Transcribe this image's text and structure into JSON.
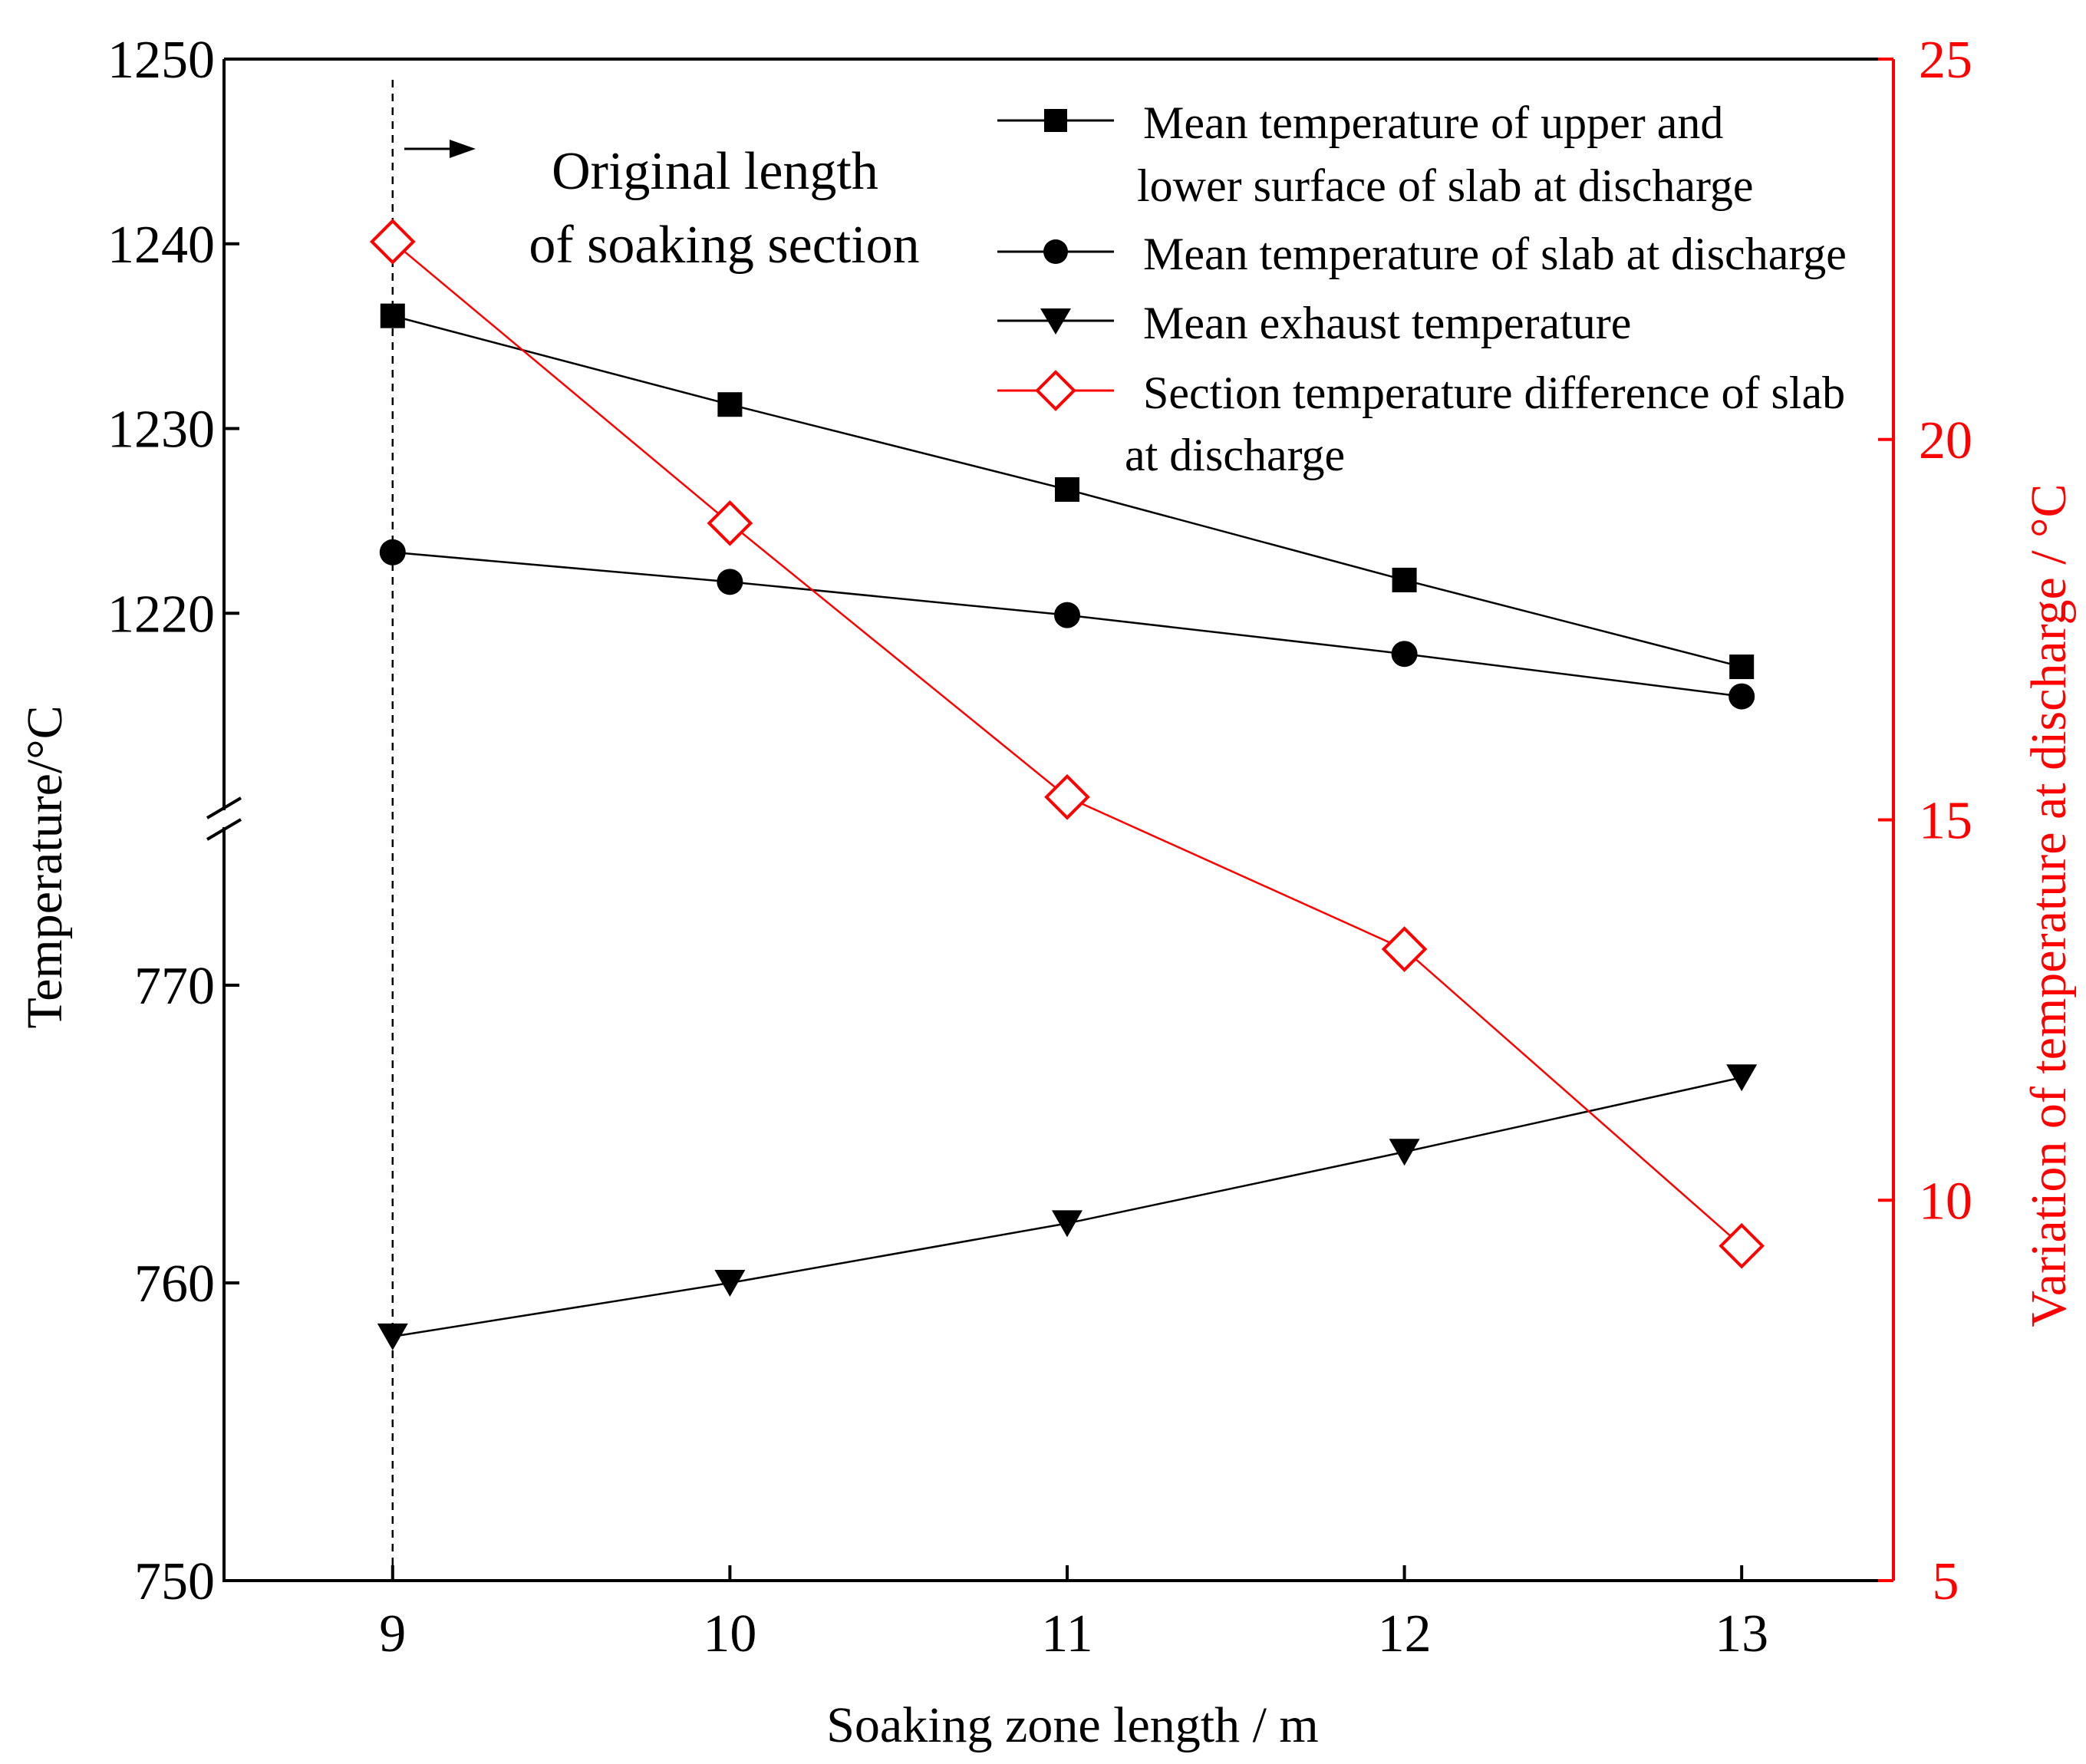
{
  "chart_data": {
    "type": "line",
    "xlabel": "Soaking zone length / m",
    "ylabel_left": "Temperature/°C",
    "ylabel_right": "Variation of temperature at discharge / °C",
    "x": [
      9,
      10,
      11,
      12,
      13
    ],
    "x_ticks": [
      "9",
      "10",
      "11",
      "12",
      "13"
    ],
    "xlim": [
      8.5,
      13.45
    ],
    "y_left_upper": {
      "ylim": [
        1210,
        1250
      ],
      "ticks": [
        "1250",
        "1240",
        "1230",
        "1220"
      ]
    },
    "y_left_lower": {
      "ylim": [
        750,
        775
      ],
      "ticks": [
        "770",
        "760",
        "750"
      ]
    },
    "y_right": {
      "ylim": [
        5,
        25
      ],
      "ticks": [
        "25",
        "20",
        "15",
        "10",
        "5"
      ]
    },
    "series": [
      {
        "name": "Mean temperature of  upper and lower surface of slab at discharge",
        "legend_lines": [
          "Mean temperature of  upper and",
          "lower surface of slab at discharge"
        ],
        "axis": "left_upper",
        "marker": "square",
        "color": "#000000",
        "values": [
          1236.1,
          1231.3,
          1226.7,
          1221.8,
          1217.1
        ]
      },
      {
        "name": "Mean temperature of slab at discharge",
        "legend_lines": [
          "Mean temperature of slab at discharge"
        ],
        "axis": "left_upper",
        "marker": "circle",
        "color": "#000000",
        "values": [
          1223.3,
          1221.7,
          1219.9,
          1217.8,
          1215.5
        ]
      },
      {
        "name": "Mean exhaust temperature",
        "legend_lines": [
          "Mean exhaust temperature"
        ],
        "axis": "left_lower",
        "marker": "triangle-down",
        "color": "#000000",
        "values": [
          758.2,
          760.0,
          762.0,
          764.4,
          766.9
        ]
      },
      {
        "name": "Section temperature difference of slab at discharge",
        "legend_lines": [
          "Section temperature difference of slab",
          "at discharge"
        ],
        "axis": "right",
        "marker": "diamond-open",
        "color": "#ff0000",
        "values": [
          22.6,
          18.9,
          15.3,
          13.3,
          9.4
        ]
      }
    ],
    "annotation": {
      "lines": [
        "Original length",
        "of soaking section"
      ],
      "x": 9
    },
    "colors": {
      "axis": "#000000",
      "right_axis": "#ff0000"
    }
  }
}
